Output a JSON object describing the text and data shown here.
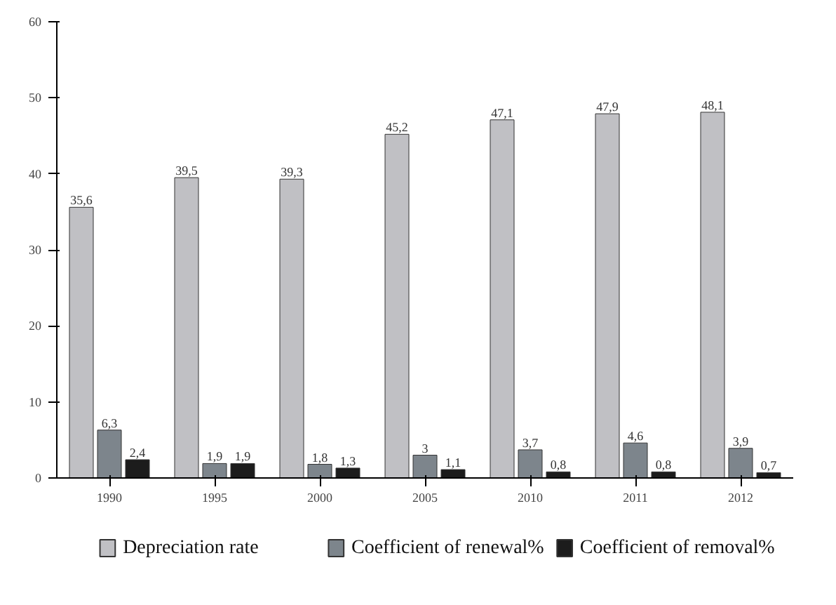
{
  "chart_data": {
    "type": "bar",
    "categories": [
      "1990",
      "1995",
      "2000",
      "2005",
      "2010",
      "2011",
      "2012"
    ],
    "series": [
      {
        "name": "Depreciation rate",
        "color": "#c0c0c4",
        "values": [
          35.6,
          39.5,
          39.3,
          45.2,
          47.1,
          47.9,
          48.1
        ],
        "value_labels": [
          "35,6",
          "39,5",
          "39,3",
          "45,2",
          "47,1",
          "47,9",
          "48,1"
        ]
      },
      {
        "name": "Coefficient of renewal%",
        "color": "#7d858c",
        "values": [
          6.3,
          1.9,
          1.8,
          3,
          3.7,
          4.6,
          3.9
        ],
        "value_labels": [
          "6,3",
          "1,9",
          "1,8",
          "3",
          "3,7",
          "4,6",
          "3,9"
        ]
      },
      {
        "name": "Coefficient of removal%",
        "color": "#1c1c1c",
        "values": [
          2.4,
          1.9,
          1.3,
          1.1,
          0.8,
          0.8,
          0.7
        ],
        "value_labels": [
          "2,4",
          "1,9",
          "1,3",
          "1,1",
          "0,8",
          "0,8",
          "0,7"
        ]
      }
    ],
    "ylim": [
      0,
      60
    ],
    "yticks": [
      0,
      10,
      20,
      30,
      40,
      50,
      60
    ],
    "grid": false,
    "legend": "bottom"
  }
}
